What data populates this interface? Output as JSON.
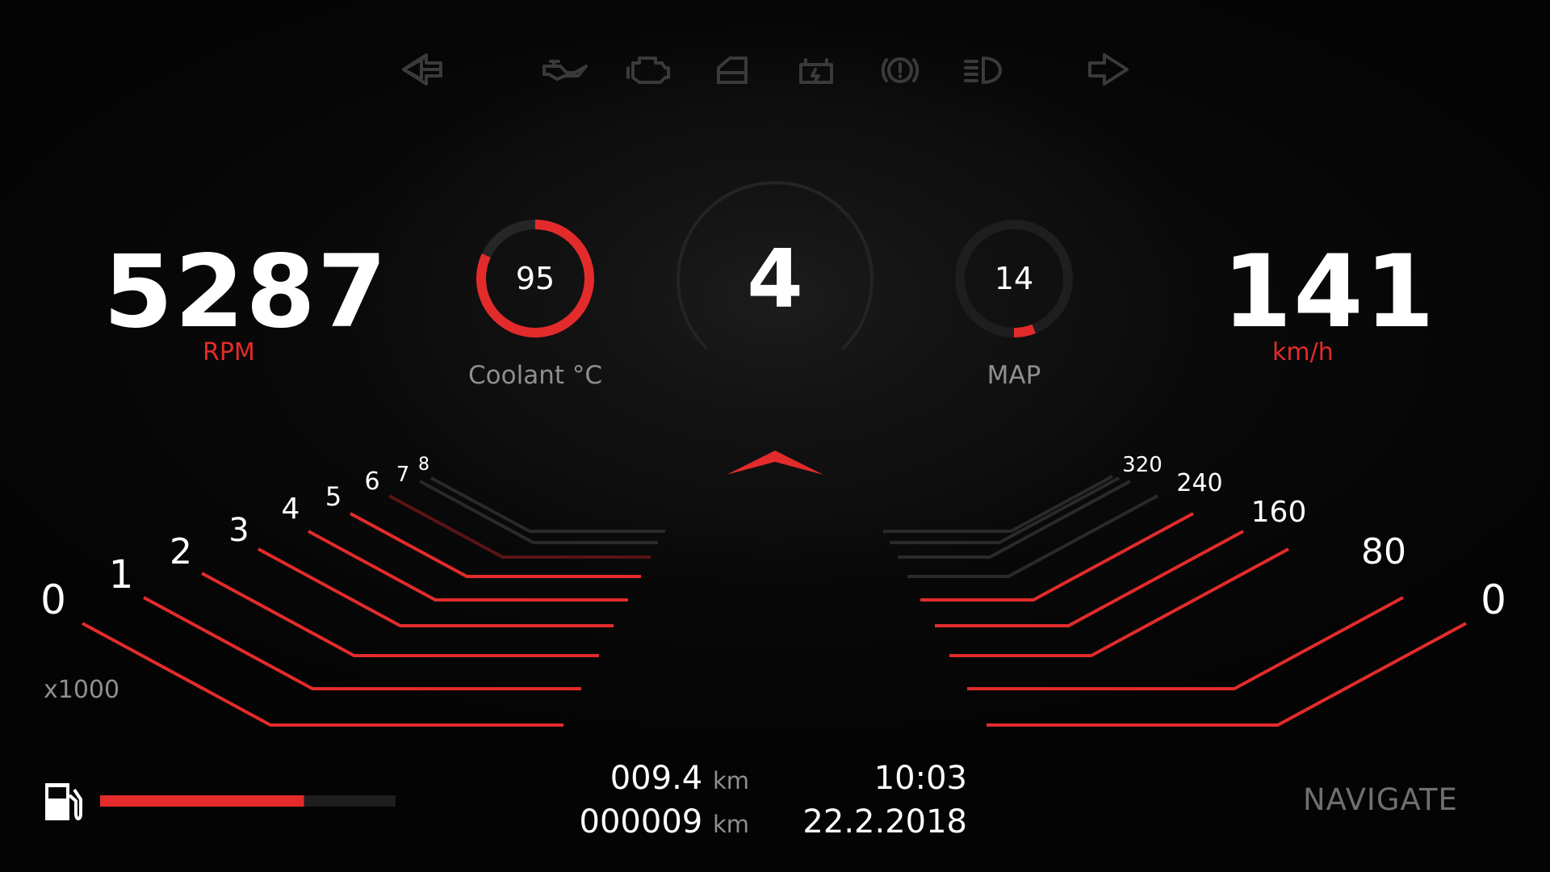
{
  "warning_icons": [
    "arrow-left-icon",
    "oil-can-icon",
    "engine-icon",
    "door-icon",
    "battery-icon",
    "brake-warning-icon",
    "headlight-icon",
    "arrow-right-icon"
  ],
  "rpm": {
    "value": "5287",
    "label": "RPM",
    "unit_multiplier": "x1000",
    "scale": [
      "0",
      "1",
      "2",
      "3",
      "4",
      "5",
      "6",
      "7",
      "8"
    ],
    "lit_ticks": 6
  },
  "coolant": {
    "value": "95",
    "label": "Coolant °C",
    "fill": 0.82
  },
  "gear": {
    "value": "4"
  },
  "map": {
    "value": "14",
    "label": "MAP",
    "fill": 0.06
  },
  "speed": {
    "value": "141",
    "label": "km/h",
    "scale": [
      "0",
      "80",
      "160",
      "240",
      "320"
    ],
    "lit_ticks": 5
  },
  "trip": {
    "value": "009.4",
    "unit": "km"
  },
  "odometer": {
    "value": "000009",
    "unit": "km"
  },
  "clock": {
    "time": "10:03",
    "date": "22.2.2018"
  },
  "fuel": {
    "level": 0.69
  },
  "navigate_label": "NAVIGATE",
  "colors": {
    "accent": "#e32b2b",
    "text": "#ffffff",
    "muted": "#8f8f8f",
    "dim_line": "#2a2a2a",
    "background": "#050505"
  }
}
